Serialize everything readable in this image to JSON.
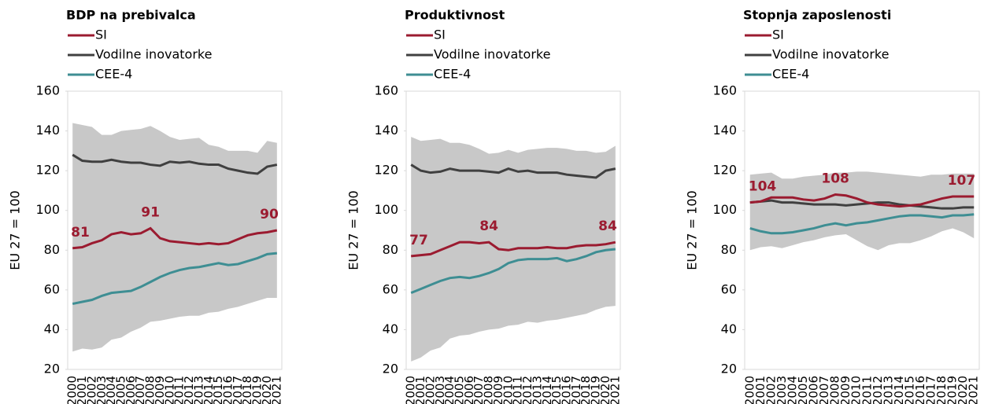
{
  "chart_data": [
    {
      "type": "line",
      "title": "BDP na prebivalca",
      "ylabel": "EU 27 = 100",
      "categories": [
        "2000",
        "2001",
        "2002",
        "2003",
        "2004",
        "2005",
        "2006",
        "2007",
        "2008",
        "2009",
        "2010",
        "2011",
        "2012",
        "2013",
        "2014",
        "2015",
        "2016",
        "2017",
        "2018",
        "2019",
        "2020",
        "2021"
      ],
      "ylim": [
        20,
        160
      ],
      "yticks": [
        20,
        40,
        60,
        80,
        100,
        120,
        140,
        160
      ],
      "band": {
        "color": "#c8c8c8",
        "upper": [
          144,
          143,
          142,
          138,
          138,
          140,
          140.5,
          141,
          142.5,
          140,
          137,
          135.5,
          136,
          136.5,
          133,
          132,
          130,
          130,
          130,
          129,
          135,
          134
        ],
        "lower": [
          29,
          30.5,
          30,
          31,
          35,
          36,
          39,
          41,
          44,
          44.5,
          45.5,
          46.5,
          47,
          47,
          48.5,
          49,
          50.5,
          51.5,
          53,
          54.5,
          56,
          56
        ]
      },
      "series": [
        {
          "name": "SI",
          "color": "#9b1b30",
          "values": [
            81,
            81.5,
            83.5,
            85,
            88,
            89,
            88,
            88.5,
            91,
            86,
            84.5,
            84,
            83.5,
            83,
            83.5,
            83,
            83.5,
            85.5,
            87.5,
            88.5,
            89,
            90
          ],
          "data_labels": [
            0,
            8,
            21
          ]
        },
        {
          "name": "Vodilne inovatorke",
          "color": "#404040",
          "values": [
            128,
            125,
            124.5,
            124.5,
            125.5,
            124.5,
            124,
            124,
            123,
            122.5,
            124.5,
            124,
            124.5,
            123.5,
            123,
            123,
            121,
            120,
            119,
            118.5,
            122,
            123
          ]
        },
        {
          "name": "CEE-4",
          "color": "#3e8e93",
          "values": [
            53,
            54,
            55,
            57,
            58.5,
            59,
            59.5,
            61.5,
            64,
            66.5,
            68.5,
            70,
            71,
            71.5,
            72.5,
            73.5,
            72.5,
            73,
            74.5,
            76,
            78,
            78.5
          ]
        }
      ]
    },
    {
      "type": "line",
      "title": "Produktivnost",
      "ylabel": "EU 27 = 100",
      "categories": [
        "2000",
        "2001",
        "2002",
        "2003",
        "2004",
        "2005",
        "2006",
        "2007",
        "2008",
        "2009",
        "2010",
        "2011",
        "2012",
        "2013",
        "2014",
        "2015",
        "2016",
        "2017",
        "2018",
        "2019",
        "2020",
        "2021"
      ],
      "ylim": [
        20,
        160
      ],
      "yticks": [
        20,
        40,
        60,
        80,
        100,
        120,
        140,
        160
      ],
      "band": {
        "color": "#c8c8c8",
        "upper": [
          137,
          135,
          135.5,
          136,
          134,
          134,
          133,
          131,
          128.5,
          129,
          130.5,
          129,
          130.5,
          131,
          131.5,
          131.5,
          131,
          130,
          130,
          129,
          129.5,
          132.5
        ],
        "lower": [
          24,
          26,
          29.5,
          31,
          35.5,
          37,
          37.5,
          39,
          40,
          40.5,
          42,
          42.5,
          44,
          43.5,
          44.5,
          45,
          46,
          47,
          48,
          50,
          51.5,
          52
        ]
      },
      "series": [
        {
          "name": "SI",
          "color": "#9b1b30",
          "values": [
            77,
            77.5,
            78,
            80,
            82,
            84,
            84,
            83.5,
            84,
            80.5,
            80,
            81,
            81,
            81,
            81.5,
            81,
            81,
            82,
            82.5,
            82.5,
            83,
            84
          ],
          "data_labels": [
            0,
            8,
            21
          ]
        },
        {
          "name": "Vodilne inovatorke",
          "color": "#404040",
          "values": [
            123,
            120,
            119,
            119.5,
            121,
            120,
            120,
            120,
            119.5,
            119,
            121,
            119.5,
            120,
            119,
            119,
            119,
            118,
            117.5,
            117,
            116.5,
            120,
            121
          ]
        },
        {
          "name": "CEE-4",
          "color": "#3e8e93",
          "values": [
            58.5,
            60.5,
            62.5,
            64.5,
            66,
            66.5,
            66,
            67,
            68.5,
            70.5,
            73.5,
            75,
            75.5,
            75.5,
            75.5,
            76,
            74.5,
            75.5,
            77,
            79,
            80,
            80.5
          ]
        }
      ]
    },
    {
      "type": "line",
      "title": "Stopnja zaposlenosti",
      "ylabel": "EU 27 = 100",
      "categories": [
        "2000",
        "2001",
        "2002",
        "2003",
        "2004",
        "2005",
        "2006",
        "2007",
        "2008",
        "2009",
        "2010",
        "2011",
        "2012",
        "2013",
        "2014",
        "2015",
        "2016",
        "2017",
        "2018",
        "2019",
        "2020",
        "2021"
      ],
      "ylim": [
        20,
        160
      ],
      "yticks": [
        20,
        40,
        60,
        80,
        100,
        120,
        140,
        160
      ],
      "band": {
        "color": "#c8c8c8",
        "upper": [
          118,
          118.5,
          119,
          116,
          116,
          117,
          117.5,
          118,
          119,
          119,
          119.5,
          119.5,
          119,
          118.5,
          118,
          117.5,
          117,
          118,
          118,
          118.5,
          118.5,
          118.5
        ],
        "lower": [
          80,
          81.5,
          82,
          81,
          82.5,
          84,
          85,
          86.5,
          87.5,
          88,
          85,
          82,
          80,
          82.5,
          83.5,
          83.5,
          85,
          87,
          89.5,
          91,
          89,
          86
        ]
      },
      "series": [
        {
          "name": "SI",
          "color": "#9b1b30",
          "values": [
            104,
            104.5,
            106.5,
            106.5,
            106.5,
            105.5,
            105,
            106,
            108,
            107.5,
            106,
            104,
            103,
            102.5,
            102,
            102.5,
            103,
            104.5,
            106,
            107,
            107,
            107
          ],
          "data_labels": [
            0,
            8,
            21
          ]
        },
        {
          "name": "Vodilne inovatorke",
          "color": "#404040",
          "values": [
            104,
            104.5,
            105,
            104,
            104,
            103.5,
            103,
            103,
            103,
            102.5,
            103,
            103.5,
            104,
            104,
            103,
            102.5,
            102,
            101.5,
            101,
            101,
            101.5,
            101.5
          ]
        },
        {
          "name": "CEE-4",
          "color": "#3e8e93",
          "values": [
            91,
            89.5,
            88.5,
            88.5,
            89,
            90,
            91,
            92.5,
            93.5,
            92.5,
            93.5,
            94,
            95,
            96,
            97,
            97.5,
            97.5,
            97,
            96.5,
            97.5,
            97.5,
            98
          ]
        }
      ]
    }
  ]
}
